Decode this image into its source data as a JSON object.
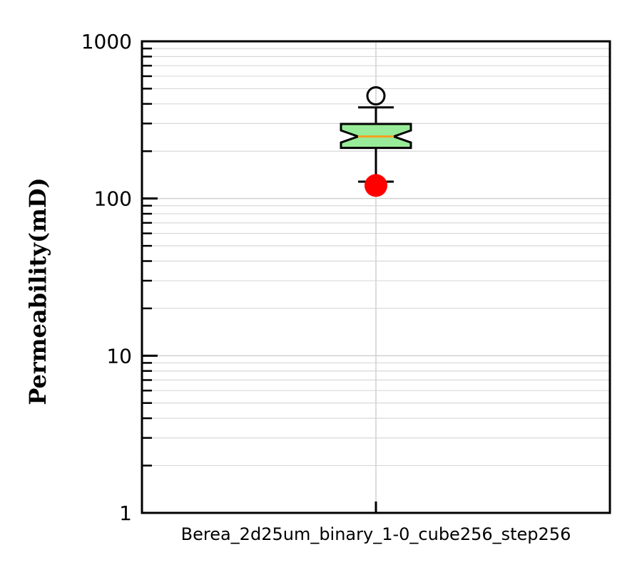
{
  "chart_data": {
    "type": "boxplot",
    "title": "",
    "xlabel": "",
    "ylabel": "Permeability(mD)",
    "yscale": "log",
    "ylim": [
      1,
      1000
    ],
    "yticks": [
      "1",
      "10",
      "100",
      "1000"
    ],
    "grid": true,
    "categories": [
      "Berea_2d25um_binary_1-0_cube256_step256"
    ],
    "boxes": [
      {
        "category": "Berea_2d25um_binary_1-0_cube256_step256",
        "notched": true,
        "whisker_low": 128,
        "q1": 210,
        "median": 248,
        "q3": 298,
        "whisker_high": 380,
        "notch_low": 227,
        "notch_high": 271,
        "outliers": [
          450
        ],
        "reference_point": 121
      }
    ],
    "colors": {
      "box_fill": "#98eb98",
      "median_line": "#f5a020",
      "reference_marker": "#ff0000"
    }
  }
}
